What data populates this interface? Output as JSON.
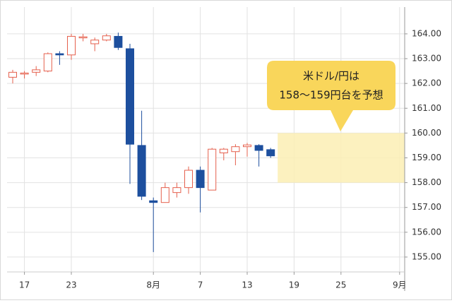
{
  "chart_data": {
    "type": "candlestick",
    "categories": [
      null,
      "17",
      null,
      null,
      null,
      "23",
      null,
      null,
      null,
      null,
      null,
      null,
      "8月",
      null,
      null,
      null,
      "7",
      null,
      null,
      null,
      "13",
      null,
      null,
      null,
      "19",
      null,
      null,
      null,
      "25",
      null,
      null,
      null,
      null,
      "9月"
    ],
    "open": [
      162.25,
      162.38,
      162.45,
      162.5,
      163.2,
      163.15,
      163.85,
      163.6,
      163.75,
      163.9,
      163.4,
      159.5,
      157.27,
      157.2,
      157.6,
      157.8,
      158.5,
      157.7,
      159.2,
      159.25,
      159.45,
      159.5,
      159.33,
      null,
      null,
      null,
      null,
      null,
      null,
      null,
      null,
      null,
      null,
      null
    ],
    "high": [
      162.55,
      162.5,
      162.7,
      163.25,
      163.3,
      164.0,
      164.0,
      163.85,
      164.0,
      164.05,
      163.6,
      160.9,
      157.4,
      158.0,
      158.0,
      158.65,
      158.65,
      159.4,
      159.4,
      159.55,
      159.6,
      159.55,
      159.4,
      null,
      null,
      null,
      null,
      null,
      null,
      null,
      null,
      null,
      null,
      null
    ],
    "low": [
      162.0,
      162.2,
      162.3,
      162.45,
      162.75,
      162.95,
      163.7,
      163.3,
      163.7,
      163.35,
      157.95,
      157.3,
      155.2,
      157.2,
      157.4,
      157.55,
      156.8,
      157.7,
      158.9,
      158.7,
      159.05,
      158.65,
      159.0,
      null,
      null,
      null,
      null,
      null,
      null,
      null,
      null,
      null,
      null,
      null
    ],
    "close": [
      162.45,
      162.42,
      162.55,
      163.2,
      163.15,
      163.9,
      163.88,
      163.75,
      163.92,
      163.45,
      159.55,
      157.45,
      157.2,
      157.8,
      157.8,
      158.5,
      157.8,
      159.35,
      159.35,
      159.45,
      159.52,
      159.3,
      159.08,
      null,
      null,
      null,
      null,
      null,
      null,
      null,
      null,
      null,
      null,
      null
    ],
    "up_color": "#e5604d",
    "down_color": "#1d4f9e",
    "ylim": [
      154.4,
      165.08
    ],
    "yticks": [
      {
        "value": 155,
        "label": "155.00"
      },
      {
        "value": 156,
        "label": "156.00"
      },
      {
        "value": 157,
        "label": "157.00"
      },
      {
        "value": 158,
        "label": "158.00"
      },
      {
        "value": 159,
        "label": "159.00"
      },
      {
        "value": 160,
        "label": "160.00"
      },
      {
        "value": 161,
        "label": "161.00"
      },
      {
        "value": 162,
        "label": "162.00"
      },
      {
        "value": 163,
        "label": "163.00"
      },
      {
        "value": 164,
        "label": "164.00"
      }
    ],
    "grid": true,
    "forecast_range": [
      158,
      160
    ],
    "forecast_color": "#fbeeb4",
    "annotation": [
      "米ドル/円は",
      "158〜159円台を予想"
    ],
    "annotation_color": "#f9d65b"
  }
}
